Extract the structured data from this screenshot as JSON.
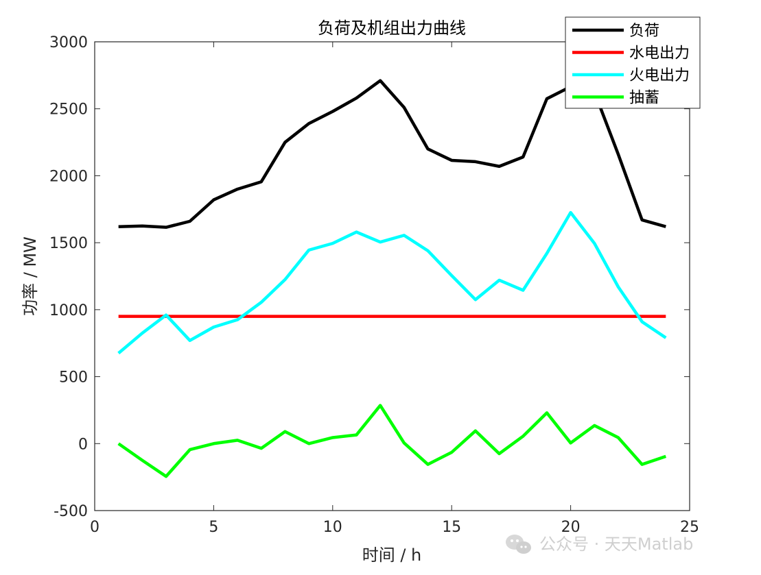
{
  "chart_data": {
    "type": "line",
    "title": "负荷及机组出力曲线",
    "xlabel": "时间 / h",
    "ylabel": "功率 / MW",
    "xlim": [
      0,
      25
    ],
    "ylim": [
      -500,
      3000
    ],
    "xticks": [
      0,
      5,
      10,
      15,
      20,
      25
    ],
    "yticks": [
      -500,
      0,
      500,
      1000,
      1500,
      2000,
      2500,
      3000
    ],
    "grid": false,
    "legend_position": "top-right",
    "x": [
      1,
      2,
      3,
      4,
      5,
      6,
      7,
      8,
      9,
      10,
      11,
      12,
      13,
      14,
      15,
      16,
      17,
      18,
      19,
      20,
      21,
      22,
      23,
      24
    ],
    "series": [
      {
        "name": "负荷",
        "color": "#000000",
        "values": [
          1620,
          1625,
          1615,
          1660,
          1820,
          1900,
          1955,
          2250,
          2390,
          2480,
          2580,
          2710,
          2510,
          2200,
          2115,
          2105,
          2070,
          2140,
          2575,
          2665,
          2625,
          2160,
          1670,
          1620
        ]
      },
      {
        "name": "水电出力",
        "color": "#ff0000",
        "values": [
          950,
          950,
          950,
          950,
          950,
          950,
          950,
          950,
          950,
          950,
          950,
          950,
          950,
          950,
          950,
          950,
          950,
          950,
          950,
          950,
          950,
          950,
          950,
          950
        ]
      },
      {
        "name": "火电出力",
        "color": "#00ffff",
        "values": [
          675,
          825,
          960,
          770,
          870,
          925,
          1055,
          1225,
          1445,
          1495,
          1580,
          1505,
          1555,
          1440,
          1255,
          1075,
          1220,
          1145,
          1420,
          1725,
          1495,
          1170,
          910,
          790
        ]
      },
      {
        "name": "抽蓄",
        "color": "#00ff00",
        "values": [
          0,
          -125,
          -245,
          -45,
          0,
          25,
          -35,
          90,
          0,
          45,
          65,
          285,
          5,
          -155,
          -65,
          95,
          -75,
          55,
          230,
          5,
          135,
          45,
          -155,
          -95
        ]
      }
    ]
  },
  "watermark": {
    "text": "公众号 · 天天Matlab",
    "icon": "wechat-icon"
  }
}
